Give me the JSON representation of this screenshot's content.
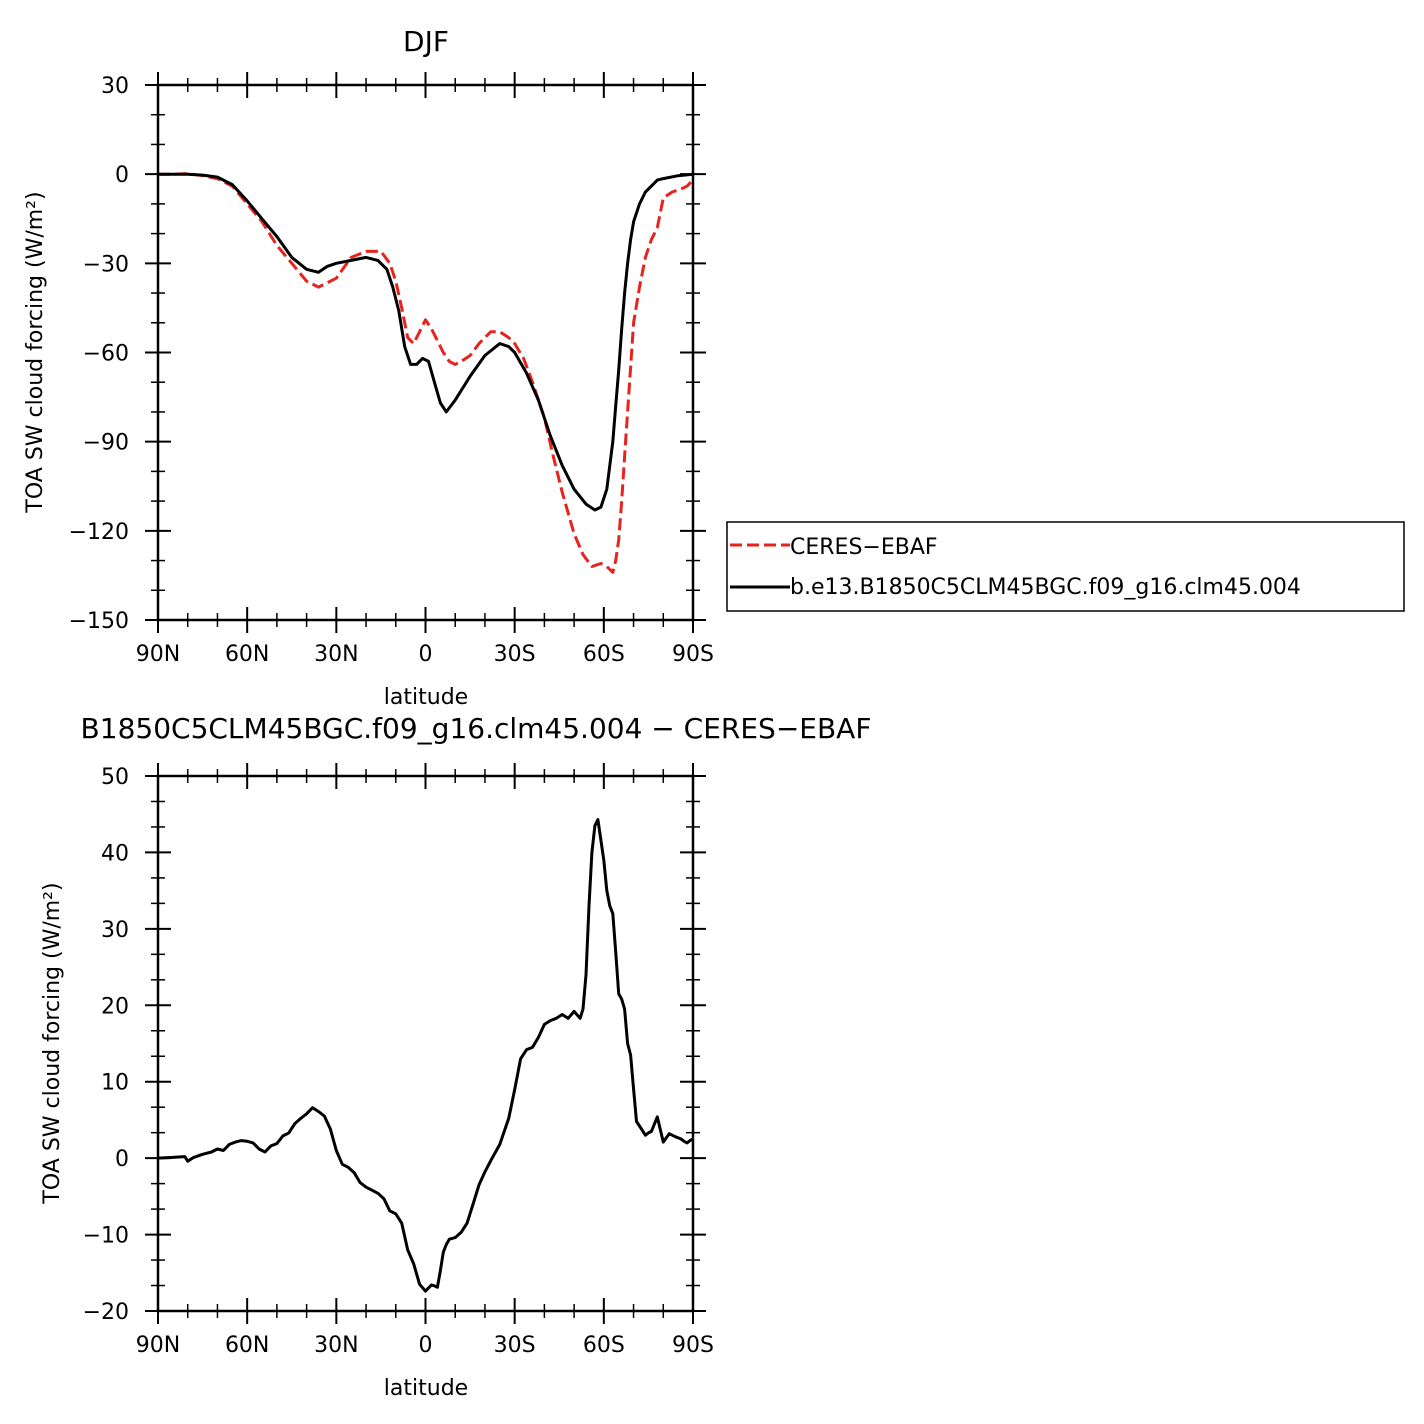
{
  "chart_data": [
    {
      "type": "line",
      "title": "DJF",
      "xlabel": "latitude",
      "ylabel": "TOA SW cloud forcing (W/m²)",
      "xlim": [
        -90,
        90
      ],
      "ylim": [
        -150,
        30
      ],
      "xticks": [
        -90,
        -60,
        -30,
        0,
        30,
        60,
        90
      ],
      "xtick_labels": [
        "90N",
        "60N",
        "30N",
        "0",
        "30S",
        "60S",
        "90S"
      ],
      "yticks": [
        -150,
        -120,
        -90,
        -60,
        -30,
        0,
        30
      ],
      "ytick_labels": [
        "−150",
        "−120",
        "−90",
        "−60",
        "−30",
        "0",
        "30"
      ],
      "legend_position": "right",
      "series": [
        {
          "name": "CERES−EBAF",
          "color": "#e8231e",
          "dash": "dashed",
          "x": [
            -90,
            -85,
            -80,
            -75,
            -70,
            -65,
            -60,
            -55,
            -50,
            -45,
            -40,
            -36,
            -30,
            -25,
            -20,
            -15,
            -12,
            -10,
            -8,
            -6,
            -4,
            -2,
            0,
            2,
            4,
            6,
            8,
            10,
            12,
            15,
            18,
            20,
            22,
            25,
            28,
            30,
            33,
            36,
            40,
            43,
            46,
            50,
            53,
            56,
            59,
            61,
            62,
            63,
            64,
            65,
            66,
            67,
            68,
            69,
            70,
            72,
            74,
            76,
            78,
            80,
            83,
            86,
            88,
            89,
            90
          ],
          "values": [
            0,
            0,
            0.2,
            -0.5,
            -1.5,
            -4,
            -10,
            -16,
            -24,
            -30,
            -36,
            -38,
            -35,
            -28,
            -26,
            -26,
            -30,
            -36,
            -45,
            -55,
            -57,
            -53,
            -49,
            -52,
            -56,
            -60,
            -63,
            -64,
            -63,
            -61,
            -57,
            -55,
            -53,
            -53,
            -55,
            -57,
            -62,
            -70,
            -82,
            -95,
            -107,
            -121,
            -128,
            -132,
            -131,
            -132,
            -133,
            -134,
            -130,
            -123,
            -110,
            -95,
            -80,
            -65,
            -50,
            -38,
            -28,
            -22,
            -18,
            -8,
            -6,
            -5,
            -4,
            -3,
            -2
          ]
        },
        {
          "name": "b.e13.B1850C5CLM45BGC.f09_g16.clm45.004",
          "color": "#000000",
          "dash": "solid",
          "x": [
            -90,
            -85,
            -80,
            -75,
            -70,
            -65,
            -60,
            -55,
            -50,
            -45,
            -40,
            -36,
            -33,
            -30,
            -25,
            -20,
            -16,
            -13,
            -11,
            -9,
            -7,
            -5,
            -3,
            -1,
            1,
            3,
            5,
            7,
            10,
            15,
            20,
            25,
            28,
            30,
            34,
            38,
            42,
            46,
            50,
            54,
            57,
            59,
            61,
            63,
            64,
            65,
            66,
            67,
            68,
            69,
            70,
            72,
            74,
            76,
            78,
            80,
            85,
            90
          ],
          "values": [
            0,
            0,
            0,
            -0.3,
            -1,
            -3.5,
            -9,
            -15,
            -21,
            -28,
            -32,
            -33,
            -31,
            -30,
            -29,
            -28,
            -29,
            -32,
            -38,
            -46,
            -58,
            -64,
            -64,
            -62,
            -63,
            -70,
            -77,
            -80,
            -76,
            -68,
            -61,
            -57,
            -58,
            -60,
            -67,
            -76,
            -88,
            -98,
            -106,
            -111,
            -113,
            -112,
            -106,
            -90,
            -78,
            -66,
            -52,
            -40,
            -30,
            -22,
            -16,
            -10,
            -6,
            -4,
            -2,
            -1.5,
            -0.5,
            0
          ]
        }
      ]
    },
    {
      "type": "line",
      "title": "B1850C5CLM45BGC.f09_g16.clm45.004 − CERES−EBAF",
      "xlabel": "latitude",
      "ylabel": "TOA SW cloud forcing (W/m²)",
      "xlim": [
        -90,
        90
      ],
      "ylim": [
        -20,
        50
      ],
      "xticks": [
        -90,
        -60,
        -30,
        0,
        30,
        60,
        90
      ],
      "xtick_labels": [
        "90N",
        "60N",
        "30N",
        "0",
        "30S",
        "60S",
        "90S"
      ],
      "yticks": [
        -20,
        -10,
        0,
        10,
        20,
        30,
        40,
        50
      ],
      "ytick_labels": [
        "−20",
        "−10",
        "0",
        "10",
        "20",
        "30",
        "40",
        "50"
      ],
      "series": [
        {
          "color": "#000000",
          "dash": "solid",
          "x": [
            -90,
            -85,
            -81,
            -80,
            -78,
            -75,
            -72,
            -70,
            -68,
            -66,
            -64,
            -62,
            -60,
            -58,
            -57,
            -56,
            -54,
            -52,
            -50,
            -48,
            -46,
            -44,
            -42,
            -40,
            -38,
            -36,
            -34,
            -32,
            -30,
            -28,
            -26,
            -24,
            -22,
            -20,
            -18,
            -16,
            -14,
            -12,
            -10,
            -8,
            -6,
            -4,
            -2,
            0,
            2,
            3,
            4,
            5,
            6,
            7,
            8,
            10,
            12,
            14,
            16,
            18,
            20,
            22,
            25,
            28,
            30,
            32,
            34,
            36,
            38,
            40,
            42,
            44,
            46,
            48,
            50,
            52,
            53,
            54,
            55,
            56,
            57,
            58,
            60,
            61,
            62,
            63,
            64,
            65,
            66,
            67,
            68,
            69,
            70,
            71,
            72,
            74,
            75,
            76,
            78,
            80,
            82,
            84,
            86,
            87,
            88,
            89,
            90
          ],
          "values": [
            0,
            0.1,
            0.2,
            -0.4,
            0.1,
            0.5,
            0.8,
            1.2,
            1.0,
            1.8,
            2.1,
            2.3,
            2.2,
            2.0,
            1.6,
            1.2,
            0.8,
            1.6,
            1.9,
            2.9,
            3.3,
            4.5,
            5.2,
            5.8,
            6.6,
            6.1,
            5.5,
            3.8,
            1.0,
            -0.8,
            -1.2,
            -1.9,
            -3.2,
            -3.8,
            -4.2,
            -4.6,
            -5.3,
            -6.9,
            -7.3,
            -8.5,
            -12.0,
            -13.8,
            -16.5,
            -17.4,
            -16.6,
            -16.7,
            -16.9,
            -14.7,
            -12.3,
            -11.3,
            -10.6,
            -10.4,
            -9.7,
            -8.5,
            -6.0,
            -3.5,
            -1.8,
            -0.3,
            1.8,
            5.2,
            9.0,
            13.0,
            14.2,
            14.5,
            15.8,
            17.5,
            18.0,
            18.3,
            18.8,
            18.3,
            19.2,
            18.3,
            19.5,
            24.0,
            33.0,
            40.0,
            43.5,
            44.3,
            39.0,
            35.0,
            33.0,
            32.0,
            27.0,
            21.5,
            20.8,
            19.5,
            15.0,
            13.5,
            9.0,
            4.8,
            4.2,
            3.0,
            3.3,
            3.5,
            5.4,
            2.1,
            3.2,
            2.8,
            2.5,
            2.2,
            2.0,
            2.3,
            2.5
          ]
        }
      ]
    }
  ]
}
